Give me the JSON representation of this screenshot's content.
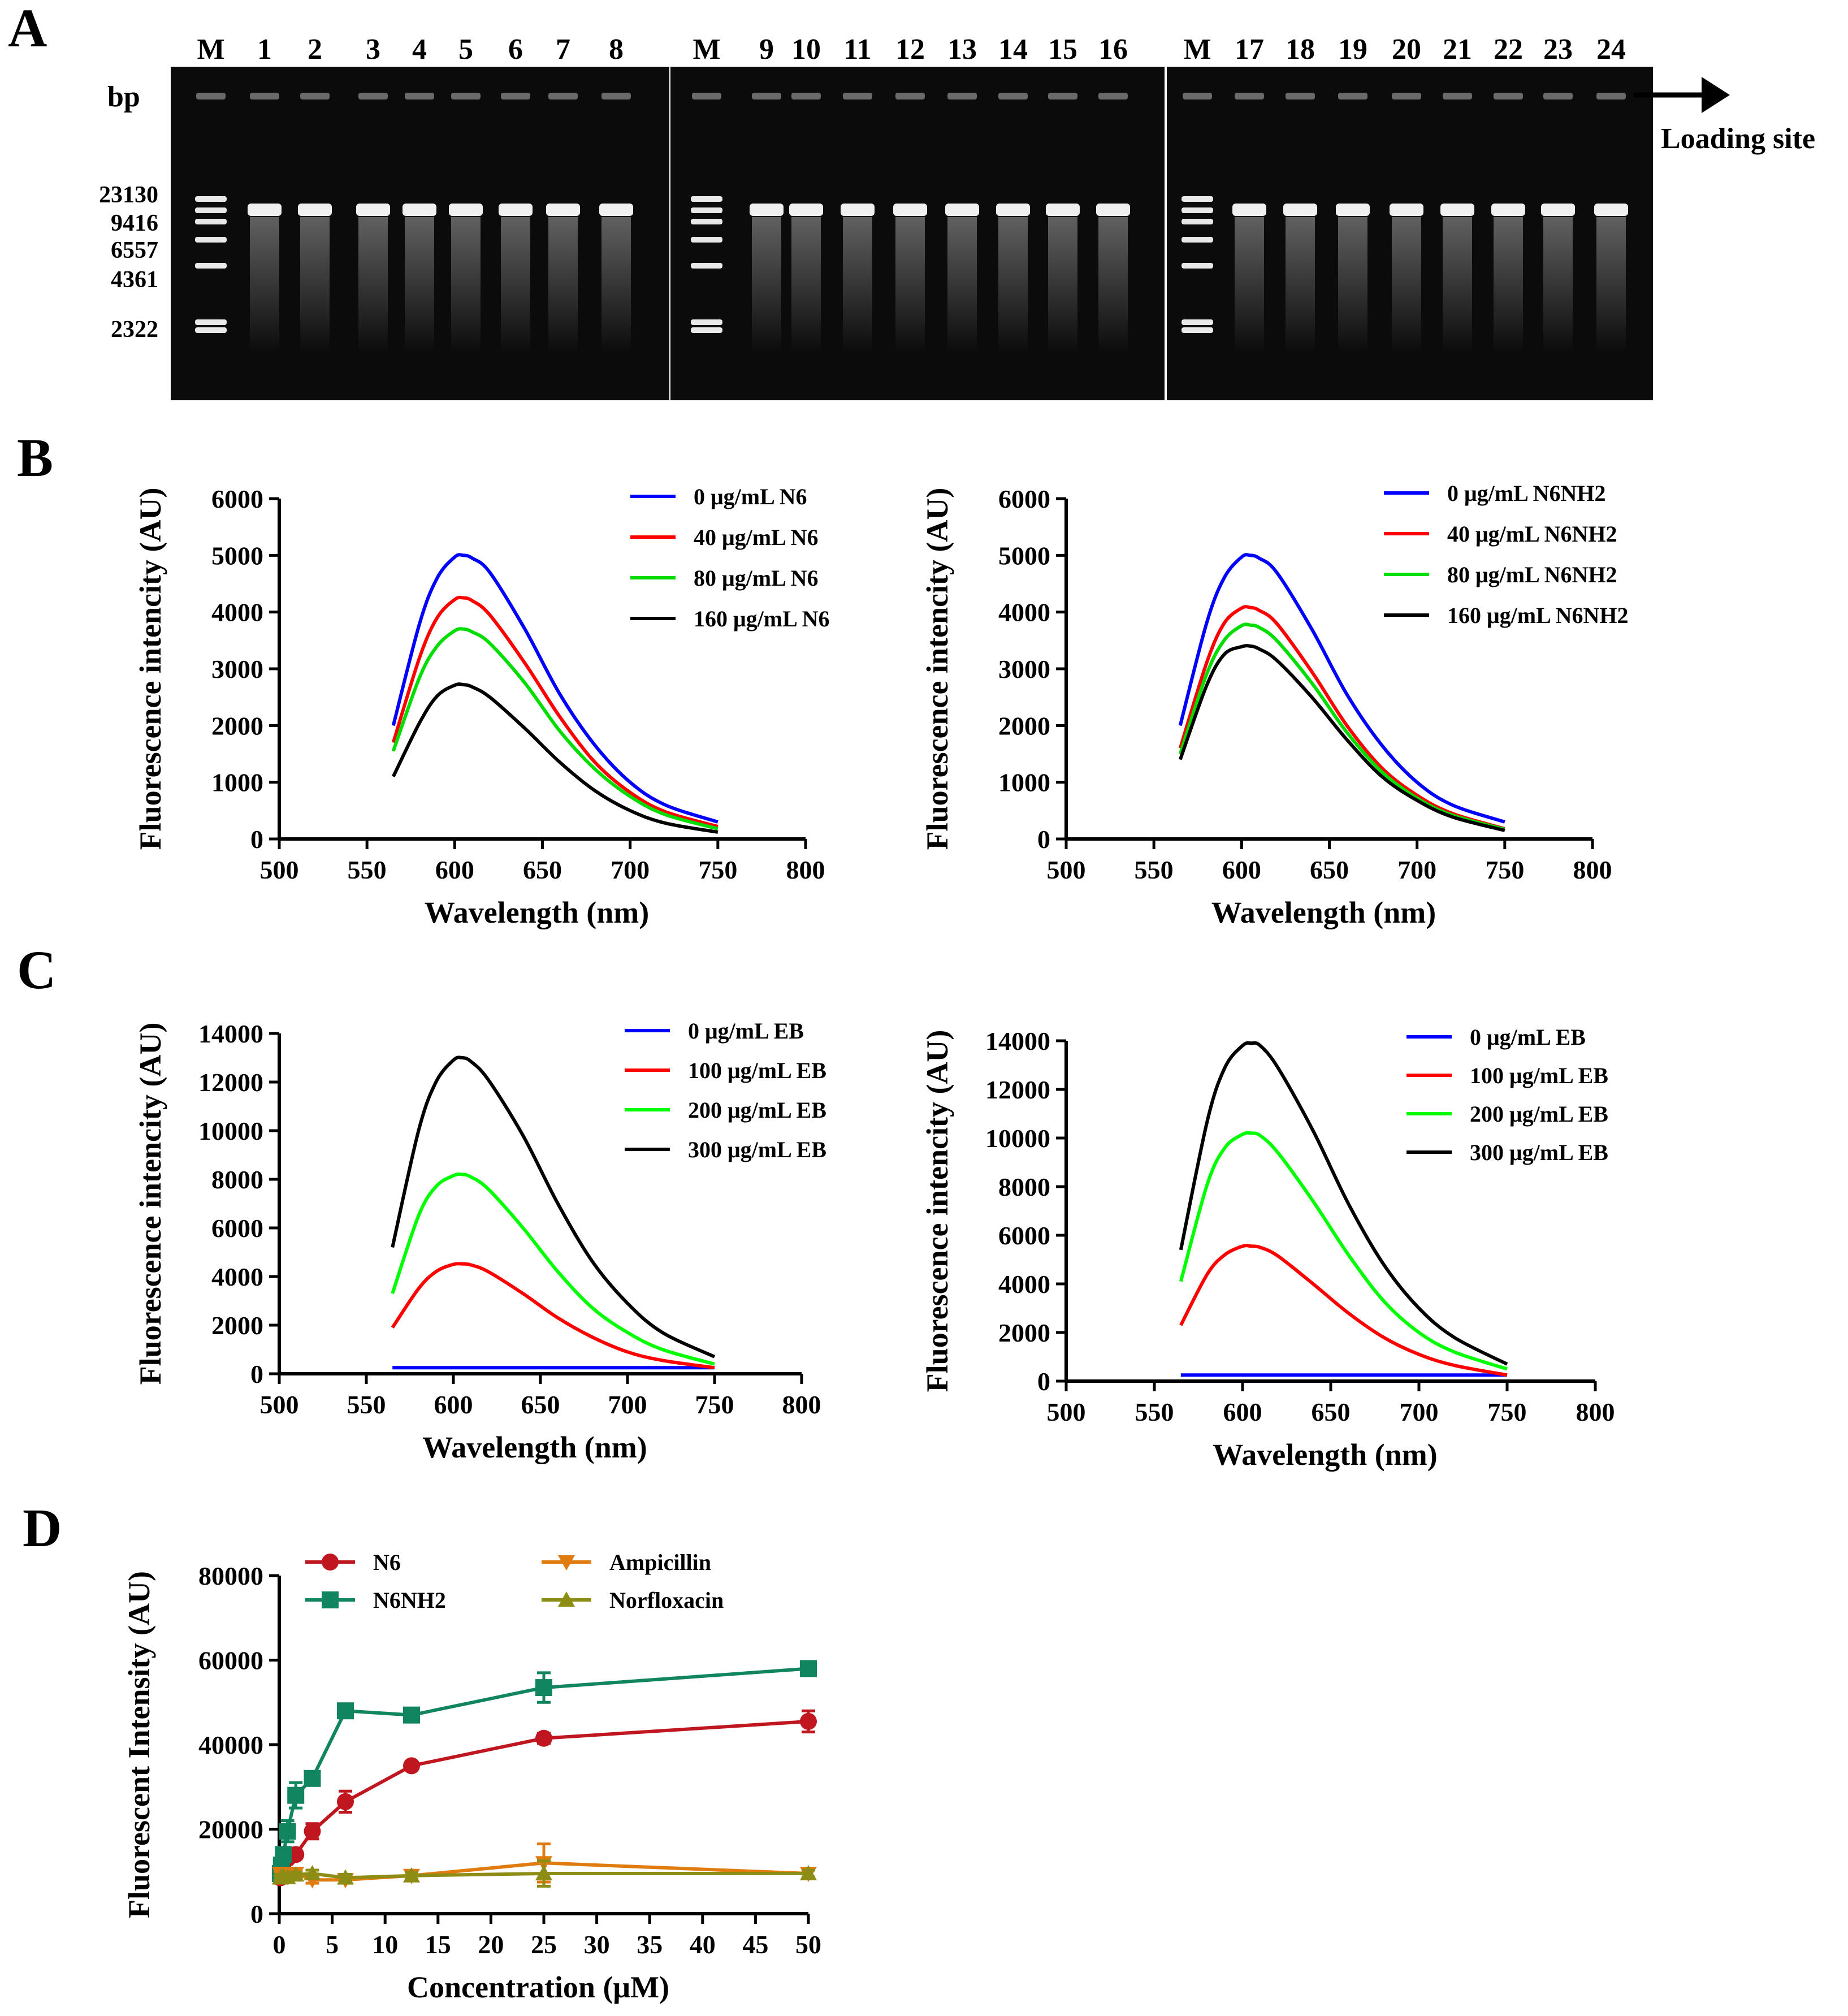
{
  "panels": {
    "A": {
      "letter": "A",
      "bp_label": "bp",
      "loading_label": "Loading site",
      "marker_sizes": [
        "23130",
        "9416",
        "6557",
        "4361",
        "2322"
      ],
      "gels": [
        {
          "lanes": [
            "M",
            "1",
            "2",
            "3",
            "4",
            "5",
            "6",
            "7",
            "8"
          ]
        },
        {
          "lanes": [
            "M",
            "9",
            "10",
            "11",
            "12",
            "13",
            "14",
            "15",
            "16"
          ]
        },
        {
          "lanes": [
            "M",
            "17",
            "18",
            "19",
            "20",
            "21",
            "22",
            "23",
            "24"
          ]
        }
      ]
    },
    "B": {
      "letter": "B"
    },
    "C": {
      "letter": "C"
    },
    "D": {
      "letter": "D"
    }
  },
  "chart_data": [
    {
      "id": "B-left",
      "type": "line",
      "xlabel": "Wavelength (nm)",
      "ylabel": "Fluorescence intencity (AU)",
      "xlim": [
        500,
        800
      ],
      "ylim": [
        0,
        6000
      ],
      "xticks": [
        500,
        550,
        600,
        650,
        700,
        750,
        800
      ],
      "yticks": [
        0,
        1000,
        2000,
        3000,
        4000,
        5000,
        6000
      ],
      "x": [
        565,
        580,
        590,
        600,
        605,
        610,
        620,
        640,
        660,
        680,
        700,
        720,
        750
      ],
      "series": [
        {
          "name": "0 μg/mL N6",
          "color": "#0000ff",
          "values": [
            2000,
            3800,
            4600,
            4970,
            5000,
            4950,
            4700,
            3700,
            2550,
            1650,
            1000,
            600,
            300
          ]
        },
        {
          "name": "40 μg/mL N6",
          "color": "#ff0000",
          "values": [
            1700,
            3200,
            3900,
            4220,
            4250,
            4200,
            3950,
            3100,
            2150,
            1350,
            820,
            480,
            220
          ]
        },
        {
          "name": "80 μg/mL N6",
          "color": "#00dd00",
          "values": [
            1550,
            2850,
            3400,
            3670,
            3700,
            3650,
            3450,
            2750,
            1900,
            1230,
            750,
            430,
            180
          ]
        },
        {
          "name": "160 μg/mL N6",
          "color": "#000000",
          "values": [
            1100,
            2050,
            2520,
            2710,
            2720,
            2680,
            2500,
            1950,
            1350,
            850,
            500,
            280,
            120
          ]
        }
      ]
    },
    {
      "id": "B-right",
      "type": "line",
      "xlabel": "Wavelength (nm)",
      "ylabel": "Fluorescence intencity (AU)",
      "xlim": [
        500,
        800
      ],
      "ylim": [
        0,
        6000
      ],
      "xticks": [
        500,
        550,
        600,
        650,
        700,
        750,
        800
      ],
      "yticks": [
        0,
        1000,
        2000,
        3000,
        4000,
        5000,
        6000
      ],
      "x": [
        565,
        580,
        590,
        600,
        605,
        610,
        620,
        640,
        660,
        680,
        700,
        720,
        750
      ],
      "series": [
        {
          "name": "0  μg/mL N6NH2",
          "color": "#0000ff",
          "values": [
            2000,
            3800,
            4600,
            4970,
            5000,
            4950,
            4700,
            3700,
            2550,
            1650,
            1000,
            600,
            300
          ]
        },
        {
          "name": "40 μg/mL N6NH2",
          "color": "#ff0000",
          "values": [
            1600,
            3100,
            3800,
            4070,
            4080,
            4030,
            3800,
            2950,
            2000,
            1250,
            770,
            450,
            180
          ]
        },
        {
          "name": "80 μg/mL N6NH2",
          "color": "#00dd00",
          "values": [
            1500,
            2900,
            3500,
            3760,
            3770,
            3730,
            3500,
            2750,
            1880,
            1180,
            720,
            420,
            170
          ]
        },
        {
          "name": "160 μg/mL N6NH2",
          "color": "#000000",
          "values": [
            1400,
            2700,
            3250,
            3390,
            3400,
            3350,
            3150,
            2500,
            1750,
            1100,
            680,
            390,
            150
          ]
        }
      ]
    },
    {
      "id": "C-left",
      "type": "line",
      "xlabel": "Wavelength (nm)",
      "ylabel": "Fluorescence intencity (AU)",
      "xlim": [
        500,
        800
      ],
      "ylim": [
        0,
        14000
      ],
      "xticks": [
        500,
        550,
        600,
        650,
        700,
        750,
        800
      ],
      "yticks": [
        0,
        2000,
        4000,
        6000,
        8000,
        10000,
        12000,
        14000
      ],
      "x": [
        565,
        580,
        590,
        600,
        605,
        610,
        620,
        640,
        660,
        680,
        700,
        720,
        750
      ],
      "series": [
        {
          "name": "0  μg/mL EB",
          "color": "#0000ff",
          "values": [
            250,
            250,
            250,
            250,
            250,
            250,
            250,
            250,
            250,
            250,
            250,
            250,
            250
          ]
        },
        {
          "name": "100 μg/mL EB",
          "color": "#ff0000",
          "values": [
            1900,
            3500,
            4200,
            4500,
            4520,
            4480,
            4200,
            3300,
            2300,
            1500,
            900,
            550,
            250
          ]
        },
        {
          "name": "200 μg/mL EB",
          "color": "#00ff00",
          "values": [
            3300,
            6500,
            7700,
            8150,
            8200,
            8100,
            7600,
            6000,
            4200,
            2700,
            1700,
            1000,
            400
          ]
        },
        {
          "name": "300 μg/mL EB",
          "color": "#000000",
          "values": [
            5200,
            10000,
            12000,
            12900,
            13000,
            12850,
            12100,
            9800,
            7000,
            4600,
            2900,
            1700,
            700
          ]
        }
      ]
    },
    {
      "id": "C-right",
      "type": "line",
      "xlabel": "Wavelength (nm)",
      "ylabel": "Fluorescence intencity (AU)",
      "xlim": [
        500,
        800
      ],
      "ylim": [
        0,
        14000
      ],
      "xticks": [
        500,
        550,
        600,
        650,
        700,
        750,
        800
      ],
      "yticks": [
        0,
        2000,
        4000,
        6000,
        8000,
        10000,
        12000,
        14000
      ],
      "x": [
        565,
        580,
        590,
        600,
        605,
        610,
        620,
        640,
        660,
        680,
        700,
        720,
        750
      ],
      "series": [
        {
          "name": "0  μg/mL EB",
          "color": "#0000ff",
          "values": [
            250,
            250,
            250,
            250,
            250,
            250,
            250,
            250,
            250,
            250,
            250,
            250,
            250
          ]
        },
        {
          "name": "100  μg/mL EB",
          "color": "#ff0000",
          "values": [
            2300,
            4400,
            5200,
            5550,
            5550,
            5500,
            5150,
            4000,
            2800,
            1800,
            1100,
            650,
            250
          ]
        },
        {
          "name": "200  μg/mL EB",
          "color": "#00ff00",
          "values": [
            4100,
            8100,
            9600,
            10150,
            10200,
            10100,
            9400,
            7400,
            5200,
            3300,
            2000,
            1200,
            500
          ]
        },
        {
          "name": "300  μg/mL EB",
          "color": "#000000",
          "values": [
            5400,
            10700,
            12900,
            13800,
            13900,
            13800,
            12900,
            10300,
            7300,
            4800,
            3000,
            1800,
            700
          ]
        }
      ]
    },
    {
      "id": "D",
      "type": "line",
      "xlabel": "Concentration (μM)",
      "ylabel": "Fluorescent Intensity (AU)",
      "xlim": [
        0,
        50
      ],
      "ylim": [
        0,
        80000
      ],
      "xticks": [
        0,
        5,
        10,
        15,
        20,
        25,
        30,
        35,
        40,
        45,
        50
      ],
      "yticks": [
        0,
        20000,
        40000,
        60000,
        80000
      ],
      "x": [
        0.1,
        0.2,
        0.39,
        0.78,
        1.56,
        3.125,
        6.25,
        12.5,
        25,
        50
      ],
      "series": [
        {
          "name": "N6",
          "color": "#c0161f",
          "marker": "circle",
          "values": [
            8500,
            10000,
            12000,
            13000,
            14000,
            19500,
            26500,
            35000,
            41500,
            45500
          ],
          "errors": [
            600,
            700,
            800,
            900,
            1000,
            1800,
            2500,
            1000,
            1200,
            2500
          ]
        },
        {
          "name": "N6NH2",
          "color": "#11855f",
          "marker": "square",
          "values": [
            9500,
            11500,
            14000,
            19500,
            28000,
            32000,
            48000,
            47000,
            53500,
            58000
          ],
          "errors": [
            700,
            900,
            1200,
            2500,
            3000,
            1500,
            1000,
            1200,
            3500,
            1000
          ]
        },
        {
          "name": "Ampicillin",
          "color": "#e07b10",
          "marker": "triangle-down",
          "values": [
            9500,
            9200,
            9000,
            8800,
            9500,
            8000,
            8000,
            9000,
            12000,
            9500
          ],
          "errors": [
            500,
            500,
            500,
            500,
            800,
            800,
            800,
            800,
            4500,
            1000
          ]
        },
        {
          "name": "Norfloxacin",
          "color": "#8d8d16",
          "marker": "triangle-up",
          "values": [
            8500,
            8800,
            8800,
            8600,
            9200,
            9500,
            8500,
            9000,
            9500,
            9500
          ],
          "errors": [
            500,
            500,
            500,
            500,
            600,
            800,
            800,
            800,
            3000,
            800
          ]
        }
      ]
    }
  ]
}
